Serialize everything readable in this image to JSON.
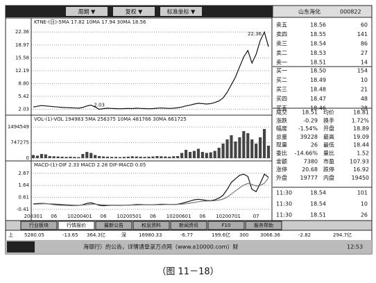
{
  "toolbar": {
    "menus": [
      "周期 ▼",
      "复权 ▼",
      "标准坐标 ▼"
    ]
  },
  "stock": {
    "name": "山东海化",
    "code": "000822"
  },
  "sell": [
    [
      "卖五",
      "18.56",
      "60"
    ],
    [
      "卖四",
      "18.55",
      "141"
    ],
    [
      "卖三",
      "18.54",
      "86"
    ],
    [
      "卖二",
      "18.53",
      "27"
    ],
    [
      "卖一",
      "18.51",
      "14"
    ]
  ],
  "buy": [
    [
      "买一",
      "18.50",
      "154"
    ],
    [
      "买二",
      "18.49",
      "10"
    ],
    [
      "买三",
      "18.48",
      "21"
    ],
    [
      "买四",
      "18.47",
      "48"
    ],
    [
      "买五",
      "18.46",
      "28"
    ]
  ],
  "quote": [
    [
      "成交",
      "18.51",
      "均价",
      "18.81"
    ],
    [
      "涨跌",
      "-0.29",
      "换手",
      "1.72%"
    ],
    [
      "幅度",
      "-1.54%",
      "开盘",
      "18.89"
    ],
    [
      "总量",
      "39228",
      "最高",
      "19.09"
    ],
    [
      "现量",
      "26",
      "最低",
      "18.44"
    ],
    [
      "委比",
      "-14.66%",
      "量比",
      "1.52"
    ],
    [
      "金额",
      "7380",
      "市盈",
      "107.93"
    ],
    [
      "涨停",
      "20.68",
      "跌停",
      "16.92"
    ],
    [
      "外盘",
      "19777",
      "内盘",
      "19450"
    ]
  ],
  "ticks": [
    [
      "11:30",
      "18.54",
      "101"
    ],
    [
      "11:30",
      "18.54",
      "10"
    ],
    [
      "11:30",
      "18.51",
      "26"
    ]
  ],
  "tabs": [
    "行业板块",
    "行情报价",
    "最新公告",
    "权息资料",
    "新闻资讯",
    "F10",
    "服务帮助"
  ],
  "index_bar": [
    "上",
    "5280.05",
    "-13.65",
    "364.3亿",
    "深",
    "16980.33",
    "-6.77",
    "199.6亿",
    "300",
    "3066.36",
    "-2.82",
    "294.7亿"
  ],
  "news": "海银行）的公告，详情请登录万点网（www.a10000.com）财",
  "clock": "12:53",
  "caption": "（图 11－18）",
  "chart_data": [
    {
      "type": "line",
      "title": "KTNE-(日)-5MA 17.82 10MA 17.94 30MA 18.56",
      "color": "#111",
      "values": [
        2.6,
        2.8,
        3.0,
        2.9,
        2.8,
        2.7,
        2.6,
        2.5,
        2.45,
        2.4,
        2.35,
        2.3,
        2.5,
        2.9,
        3.1,
        2.6,
        2.03,
        2.2,
        2.3,
        2.25,
        2.2,
        2.15,
        2.2,
        2.25,
        2.2,
        2.3,
        2.25,
        2.2,
        2.15,
        2.2,
        2.3,
        2.35,
        2.3,
        2.25,
        2.3,
        2.4,
        2.6,
        2.9,
        3.1,
        3.4,
        3.6,
        3.5,
        3.4,
        3.5,
        3.8,
        4.2,
        5.0,
        6.5,
        8.5,
        10.5,
        13.2,
        15.8,
        17.5,
        14.2,
        16.5,
        20.1,
        22.36,
        18.51
      ],
      "ylim": [
        1.2,
        23.5
      ],
      "yticks": [
        22.36,
        18.97,
        15.58,
        12.19,
        {
          "value": 8.8,
          "label": "8.80"
        },
        5.42,
        2.03
      ],
      "grid": true
    },
    {
      "type": "bar",
      "title": "VOL-(1)-VOL 194983 5MA 256375 10MA 481766 30MA 661725",
      "color": "#444",
      "values": [
        150000,
        120000,
        200000,
        180000,
        100000,
        90000,
        80000,
        70000,
        60000,
        70000,
        60000,
        50000,
        200000,
        300000,
        250000,
        150000,
        100000,
        80000,
        70000,
        60000,
        60000,
        50000,
        60000,
        70000,
        90000,
        80000,
        70000,
        60000,
        70000,
        80000,
        100000,
        90000,
        80000,
        70000,
        90000,
        100000,
        250000,
        400000,
        300000,
        350000,
        450000,
        300000,
        250000,
        280000,
        350000,
        500000,
        700000,
        900000,
        1100000,
        800000,
        1000000,
        1300000,
        1200000,
        900000,
        700000,
        1000000,
        1400000,
        600000
      ],
      "ylim": [
        0,
        1600000
      ],
      "yticks": [
        1494549,
        747275,
        0
      ],
      "grid": true
    },
    {
      "type": "line",
      "title": "MACD-(1)-DIF 2.33 MACD 2.28 DIF-MACD 0.05",
      "categories": [
        "200301",
        null,
        null,
        null,
        null,
        "06",
        null,
        null,
        null,
        "10",
        null,
        null,
        "200401",
        null,
        null,
        null,
        null,
        "06",
        null,
        null,
        null,
        "10",
        null,
        null,
        "200501",
        null,
        null,
        null,
        null,
        "06",
        null,
        null,
        null,
        "10",
        null,
        null,
        "200601",
        null,
        null,
        null,
        null,
        "06",
        null,
        null,
        null,
        "10",
        null,
        null,
        "200701",
        null,
        null,
        null,
        null,
        null,
        "07",
        null,
        null,
        null
      ],
      "series": [
        {
          "color": "#111",
          "values": [
            0.05,
            0.08,
            0.1,
            0.08,
            0.04,
            0.0,
            -0.03,
            -0.05,
            -0.06,
            -0.07,
            -0.08,
            -0.08,
            -0.02,
            0.1,
            0.15,
            0.05,
            -0.08,
            -0.1,
            -0.07,
            -0.06,
            -0.06,
            -0.07,
            -0.06,
            -0.05,
            -0.03,
            0.0,
            0.0,
            -0.02,
            -0.03,
            -0.02,
            0.0,
            0.02,
            0.02,
            0.0,
            0.01,
            0.03,
            0.1,
            0.2,
            0.3,
            0.4,
            0.45,
            0.4,
            0.35,
            0.33,
            0.4,
            0.55,
            0.8,
            1.3,
            1.9,
            2.2,
            2.5,
            2.6,
            2.4,
            1.3,
            1.1,
            1.8,
            2.6,
            2.33
          ]
        },
        {
          "color": "#777",
          "values": [
            0.02,
            0.04,
            0.06,
            0.07,
            0.06,
            0.05,
            0.03,
            0.01,
            -0.01,
            -0.03,
            -0.05,
            -0.06,
            -0.05,
            -0.02,
            0.02,
            0.03,
            0.0,
            -0.03,
            -0.04,
            -0.05,
            -0.05,
            -0.06,
            -0.06,
            -0.06,
            -0.05,
            -0.04,
            -0.03,
            -0.03,
            -0.03,
            -0.03,
            -0.02,
            -0.01,
            0.0,
            0.0,
            0.0,
            0.01,
            0.03,
            0.07,
            0.12,
            0.18,
            0.24,
            0.28,
            0.3,
            0.31,
            0.33,
            0.38,
            0.47,
            0.64,
            0.9,
            1.16,
            1.43,
            1.66,
            1.81,
            1.71,
            1.59,
            1.63,
            1.82,
            2.28
          ]
        }
      ],
      "ylim": [
        -0.6,
        2.9
      ],
      "yticks": [
        2.67,
        1.64,
        0.61,
        -0.41
      ],
      "grid": true
    }
  ]
}
